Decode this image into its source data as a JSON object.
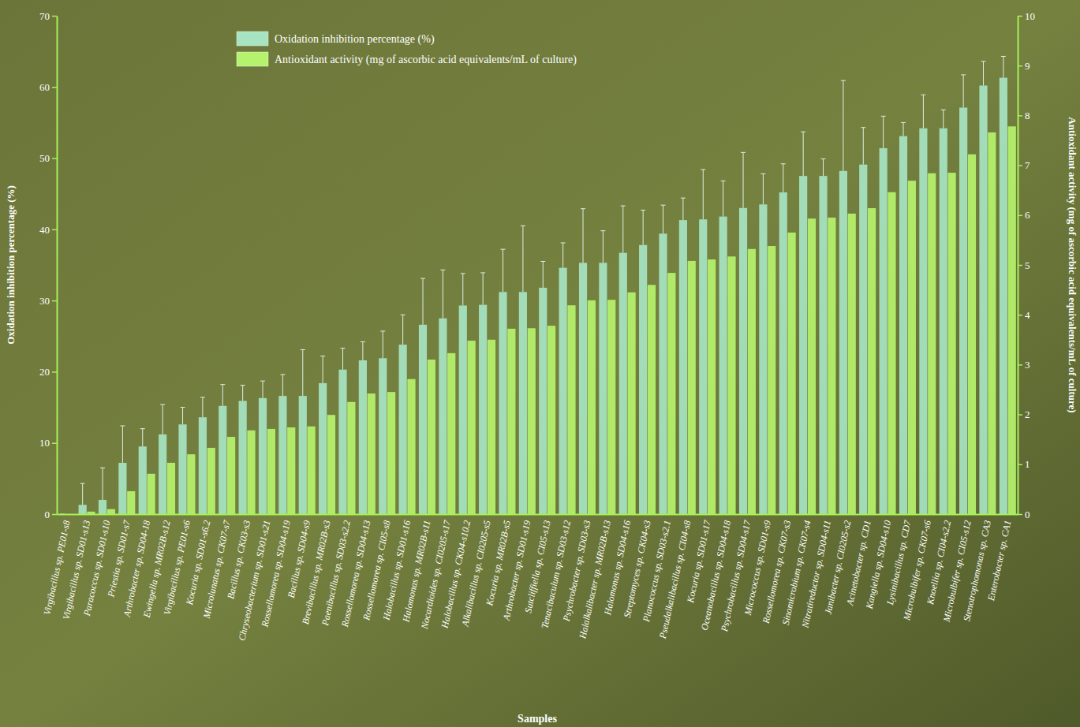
{
  "chart_data": {
    "type": "bar",
    "x_label": "Samples",
    "y_label": "Oxidation inhibition percentage (%)",
    "y2_label": "Antioxidant activity (mg of ascorbic acid equivalents/mL of culture)",
    "categories": [
      "Virgibacillus sp. PE01-s8",
      "Virgibacillus sp. SD01-s13",
      "Paracoccus sp. SD01-s10",
      "Priestia sp. SD01-s7",
      "Arthrobacter sp. SD04-18",
      "Ewingella sp. MR02B-s12",
      "Virgibacillus sp. PE01-s6",
      "Kocuria sp. SD01-s6.2",
      "Microlunatus sp. CK07-s7",
      "Bacillus sp. CK03-s3",
      "Chryseobacterium sp. SD01-s21",
      "Rossellomorea sp. SD04-s19",
      "Bacillus sp. SD04-s9",
      "Brevibacillus sp. MR02B-s3",
      "Paenibacillus sp. SD03-s2.2",
      "Rossellomorea sp. SD04-s13",
      "Rossellomorea sp. CI05-s8",
      "Halobacillus sp. SD01-s16",
      "Halomonas sp. MR02B-s11",
      "Nocardioides sp. CI0205-s17",
      "Halobacillus sp. CK04-s10.2",
      "Alkalibacillus sp. CI0205-s5",
      "Kocuria sp. MR02B-s5",
      "Arthrobacter sp. SD01-s19",
      "Sutcliffiella sp. CI05-s13",
      "Tenacibaculum sp. SD03-s12",
      "Psychrobacter sp. SD03-s3",
      "Halalkalibacter sp. MR02B-s13",
      "Halomonas sp. SD04-s16",
      "Streptomyces sp. CK04-s3",
      "Planococcus sp. SD03-s2.1",
      "Pseudalkalibacillus sp. CI04-s8",
      "Kocuria sp. SD01-s17",
      "Oceanobacillus sp. SD04-s18",
      "Psychrobacillus sp. SD04-s17",
      "Micrococcus sp. SD01-s9",
      "Rossellomorea sp. CK07-s3",
      "Sinomicrobium sp. CK07-s4",
      "Nitratireductor sp. SD04-s11",
      "Janibacter sp. CI0205-s2",
      "Acinetobacter sp. CD1",
      "Kangiella sp. SD04-s10",
      "Lysinibacillus sp. CD7",
      "Microbulbifer sp. CK07-s6",
      "Knoellia sp. CI04-s2.2",
      "Microbulbifer sp. CI05-s12",
      "Stenotrophomonas sp. CA3",
      "Enterobacter sp. CA1"
    ],
    "series": [
      {
        "name": "Oxidation inhibition percentage (%)",
        "color": "#a6e4c2",
        "values": [
          0,
          1.3,
          2.0,
          7.2,
          9.5,
          11.2,
          12.6,
          13.6,
          15.2,
          15.9,
          16.3,
          16.6,
          16.6,
          18.4,
          20.3,
          21.6,
          21.9,
          23.8,
          26.6,
          27.5,
          29.3,
          29.4,
          31.2,
          31.2,
          31.8,
          34.6,
          35.3,
          35.3,
          36.7,
          37.8,
          39.4,
          41.3,
          41.4,
          41.8,
          43.0,
          43.5,
          45.2,
          47.5,
          47.5,
          48.2,
          49.1,
          51.4,
          53.1,
          54.2,
          54.2,
          57.1,
          60.2,
          61.3
        ],
        "errors": [
          0,
          3.0,
          4.5,
          5.2,
          2.5,
          4.2,
          2.4,
          2.8,
          3.0,
          2.2,
          2.4,
          3.0,
          6.5,
          3.8,
          3.0,
          2.6,
          3.8,
          4.2,
          6.5,
          6.8,
          4.5,
          4.5,
          6.0,
          9.3,
          3.7,
          3.5,
          7.6,
          4.5,
          6.6,
          4.9,
          4.0,
          3.1,
          7.0,
          5.0,
          7.8,
          4.3,
          4.0,
          6.2,
          2.4,
          12.7,
          5.2,
          4.5,
          1.9,
          4.7,
          2.6,
          4.6,
          3.4,
          3.0
        ]
      },
      {
        "name": "Antioxidant activity (mg of ascorbic acid equivalents/mL of culture)",
        "color": "#b6f36c",
        "axis": "y2",
        "values": [
          0,
          0.05,
          0.1,
          0.46,
          0.81,
          1.03,
          1.2,
          1.33,
          1.55,
          1.68,
          1.71,
          1.74,
          1.76,
          1.99,
          2.25,
          2.42,
          2.45,
          2.71,
          3.1,
          3.23,
          3.48,
          3.5,
          3.72,
          3.73,
          3.78,
          4.19,
          4.29,
          4.3,
          4.45,
          4.6,
          4.84,
          5.08,
          5.11,
          5.17,
          5.32,
          5.38,
          5.65,
          5.93,
          5.95,
          6.03,
          6.14,
          6.46,
          6.69,
          6.84,
          6.85,
          7.22,
          7.66,
          7.78
        ]
      }
    ],
    "ylim": [
      0,
      70
    ],
    "yticks": [
      0,
      10,
      20,
      30,
      40,
      50,
      60,
      70
    ],
    "y2lim": [
      0,
      10
    ],
    "y2ticks": [
      0,
      1,
      2,
      3,
      4,
      5,
      6,
      7,
      8,
      9,
      10
    ],
    "legend": "top"
  }
}
